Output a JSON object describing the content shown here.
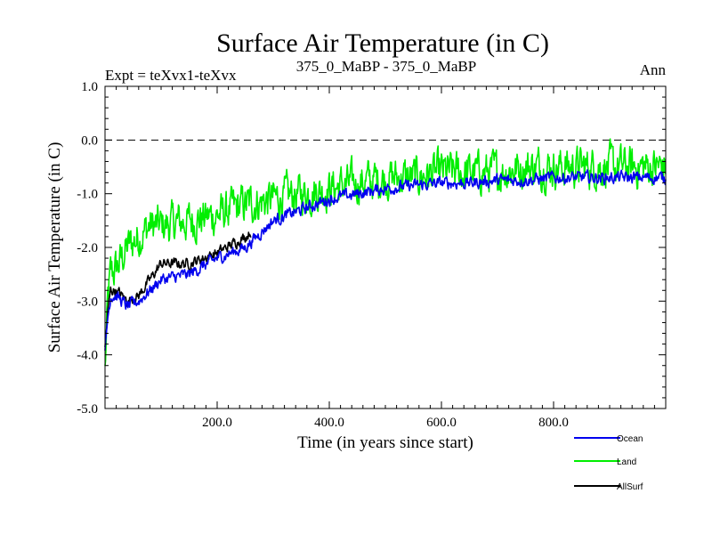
{
  "chart_data": {
    "type": "line",
    "title": "Surface Air Temperature (in C)",
    "subtitle_left": "Expt = teXvx1-teXvx",
    "subtitle_center": "375_0_MaBP - 375_0_MaBP",
    "subtitle_right": "Ann",
    "xlabel": "Time (in years since start)",
    "ylabel": "Surface Air Temperature (in C)",
    "xlim": [
      0,
      1000
    ],
    "ylim": [
      -5.0,
      1.0
    ],
    "xticks": [
      200,
      400,
      600,
      800
    ],
    "xtick_labels": [
      "200.0",
      "400.0",
      "600.0",
      "800.0"
    ],
    "yticks": [
      1.0,
      0.0,
      -1.0,
      -2.0,
      -3.0,
      -4.0,
      -5.0
    ],
    "ytick_labels": [
      "1.0",
      "0.0",
      "-1.0",
      "-2.0",
      "-3.0",
      "-4.0",
      "-5.0"
    ],
    "reference_line": 0.0,
    "series": [
      {
        "name": "Land",
        "color": "#00ee00",
        "x": [
          0,
          5,
          10,
          20,
          40,
          60,
          80,
          100,
          150,
          200,
          250,
          300,
          350,
          400,
          450,
          500,
          550,
          600,
          650,
          700,
          750,
          800,
          850,
          900,
          950,
          1000
        ],
        "values": [
          -4.3,
          -3.0,
          -2.5,
          -2.4,
          -2.0,
          -1.8,
          -1.6,
          -1.6,
          -1.5,
          -1.4,
          -1.2,
          -1.1,
          -1.0,
          -0.9,
          -0.8,
          -0.7,
          -0.7,
          -0.6,
          -0.6,
          -0.6,
          -0.5,
          -0.5,
          -0.5,
          -0.5,
          -0.5,
          -0.5
        ],
        "noise": 0.3
      },
      {
        "name": "AllSurf",
        "color": "#000000",
        "x": [
          0,
          5,
          10,
          20,
          40,
          60,
          80,
          100,
          150,
          200,
          250,
          260
        ],
        "values": [
          -3.9,
          -3.2,
          -2.8,
          -2.8,
          -3.0,
          -2.9,
          -2.6,
          -2.3,
          -2.3,
          -2.1,
          -1.8,
          -1.7
        ],
        "noise": 0.08
      },
      {
        "name": "Ocean",
        "color": "#0000ee",
        "x": [
          0,
          5,
          10,
          20,
          40,
          60,
          80,
          100,
          150,
          200,
          250,
          300,
          350,
          400,
          450,
          500,
          550,
          600,
          650,
          700,
          750,
          800,
          850,
          900,
          950,
          1000
        ],
        "values": [
          -4.0,
          -3.3,
          -2.9,
          -2.9,
          -3.1,
          -3.0,
          -2.8,
          -2.6,
          -2.5,
          -2.2,
          -2.0,
          -1.5,
          -1.3,
          -1.1,
          -1.0,
          -0.9,
          -0.85,
          -0.8,
          -0.8,
          -0.75,
          -0.75,
          -0.7,
          -0.7,
          -0.7,
          -0.7,
          -0.7
        ],
        "noise": 0.09
      }
    ],
    "legend": {
      "placement": "bottom-right",
      "entries": [
        {
          "label": "Ocean",
          "color": "#0000ee"
        },
        {
          "label": "Land",
          "color": "#00ee00"
        },
        {
          "label": "AllSurf",
          "color": "#000000"
        }
      ]
    }
  }
}
